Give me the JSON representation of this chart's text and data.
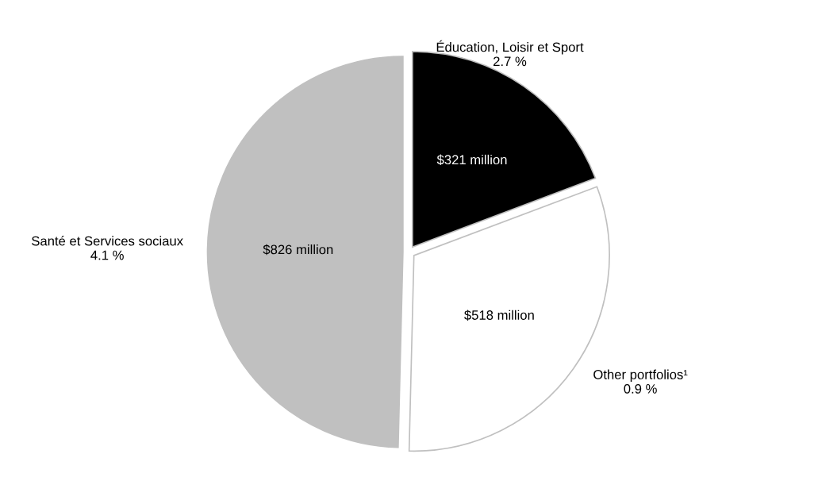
{
  "chart_data": {
    "type": "pie",
    "categories": [
      "Éducation, Loisir et Sport\n2.7 %",
      "Other portfolios¹\n0.9 %",
      "Santé et Services sociaux\n4.1 %"
    ],
    "values": [
      321,
      518,
      826
    ],
    "colors": [
      "#000000",
      "#ffffff",
      "#c0c0c0"
    ],
    "value_labels": [
      "$321 million",
      "$518 million",
      "$826 million"
    ],
    "legend": false
  }
}
